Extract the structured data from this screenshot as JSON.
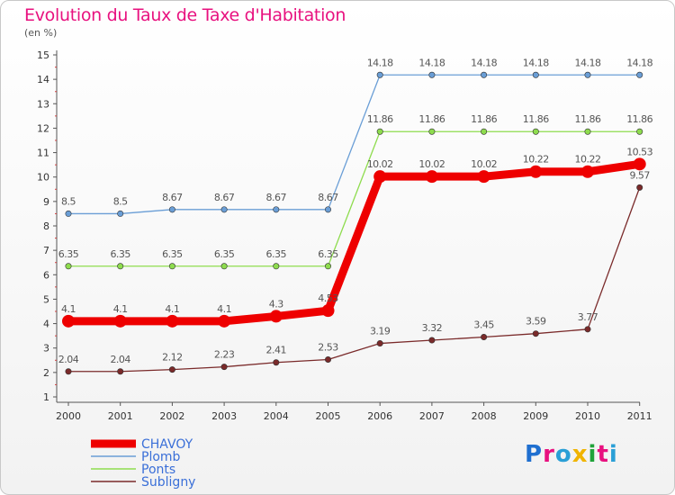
{
  "header": {
    "title": "Evolution du Taux de Taxe d'Habitation",
    "subtitle": "(en %)"
  },
  "logo": {
    "text": "Proxiti",
    "letter_colors": [
      "#1f6fd0",
      "#e8117f",
      "#2a9fd6",
      "#f0b400",
      "#1fa33a",
      "#e8117f",
      "#2a9fd6"
    ]
  },
  "chart_data": {
    "type": "line",
    "title": "Evolution du Taux de Taxe d'Habitation",
    "ylabel": "(en %)",
    "xlabel": "",
    "ylim": [
      1,
      15
    ],
    "grid": false,
    "legend_position": "bottom-left",
    "categories": [
      "2000",
      "2001",
      "2002",
      "2003",
      "2004",
      "2005",
      "2006",
      "2007",
      "2008",
      "2009",
      "2010",
      "2011"
    ],
    "yticks": [
      "1",
      "2",
      "3",
      "4",
      "5",
      "6",
      "7",
      "8",
      "9",
      "10",
      "11",
      "12",
      "13",
      "14",
      "15"
    ],
    "series": [
      {
        "name": "CHAVOY",
        "color": "#ee0000",
        "highlight": true,
        "values": [
          4.1,
          4.1,
          4.1,
          4.1,
          4.3,
          4.53,
          10.02,
          10.02,
          10.02,
          10.22,
          10.22,
          10.53
        ],
        "labels": [
          "4.1",
          "4.1",
          "4.1",
          "4.1",
          "4.3",
          "4.53",
          "10.02",
          "10.02",
          "10.02",
          "10.22",
          "10.22",
          "10.53"
        ]
      },
      {
        "name": "Plomb",
        "color": "#6a9ed6",
        "highlight": false,
        "values": [
          8.5,
          8.5,
          8.67,
          8.67,
          8.67,
          8.67,
          14.18,
          14.18,
          14.18,
          14.18,
          14.18,
          14.18
        ],
        "labels": [
          "8.5",
          "8.5",
          "8.67",
          "8.67",
          "8.67",
          "8.67",
          "14.18",
          "14.18",
          "14.18",
          "14.18",
          "14.18",
          "14.18"
        ]
      },
      {
        "name": "Ponts",
        "color": "#8edc4e",
        "highlight": false,
        "values": [
          6.35,
          6.35,
          6.35,
          6.35,
          6.35,
          6.35,
          11.86,
          11.86,
          11.86,
          11.86,
          11.86,
          11.86
        ],
        "labels": [
          "6.35",
          "6.35",
          "6.35",
          "6.35",
          "6.35",
          "6.35",
          "11.86",
          "11.86",
          "11.86",
          "11.86",
          "11.86",
          "11.86"
        ]
      },
      {
        "name": "Subligny",
        "color": "#7a2a2a",
        "highlight": false,
        "values": [
          2.04,
          2.04,
          2.12,
          2.23,
          2.41,
          2.53,
          3.19,
          3.32,
          3.45,
          3.59,
          3.77,
          9.57
        ],
        "labels": [
          "2.04",
          "2.04",
          "2.12",
          "2.23",
          "2.41",
          "2.53",
          "3.19",
          "3.32",
          "3.45",
          "3.59",
          "3.77",
          "9.57"
        ]
      }
    ]
  }
}
